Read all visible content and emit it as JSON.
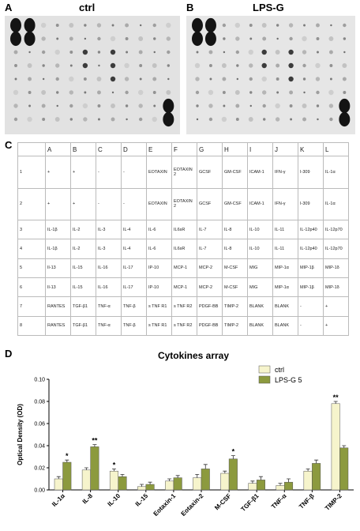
{
  "panels": {
    "a": {
      "label": "A",
      "title": "ctrl"
    },
    "b": {
      "label": "B",
      "title": "LPS-G"
    },
    "c": {
      "label": "C"
    },
    "d": {
      "label": "D"
    }
  },
  "table": {
    "header": [
      "A",
      "B",
      "C",
      "D",
      "E",
      "F",
      "G",
      "H",
      "I",
      "J",
      "K",
      "L"
    ],
    "rows": [
      [
        "1",
        "+",
        "+",
        "-",
        "-",
        "EOTAXIN",
        "EOTAXIN 2",
        "GCSF",
        "GM-CSF",
        "ICAM-1",
        "IFN-γ",
        "I-309",
        "IL-1α"
      ],
      [
        "2",
        "+",
        "+",
        "-",
        "-",
        "EOTAXIN",
        "EOTAXIN 2",
        "GCSF",
        "GM-CSF",
        "ICAM-1",
        "IFN-γ",
        "I-309",
        "IL-1α"
      ],
      [
        "3",
        "IL-1β",
        "IL-2",
        "IL-3",
        "IL-4",
        "IL-6",
        "IL6sR",
        "IL-7",
        "IL-8",
        "IL-10",
        "IL-11",
        "IL-12p40",
        "IL-12p70"
      ],
      [
        "4",
        "IL-1β",
        "IL-2",
        "IL-3",
        "IL-4",
        "IL-6",
        "IL6sR",
        "IL-7",
        "IL-8",
        "IL-10",
        "IL-11",
        "IL-12p40",
        "IL-12p70"
      ],
      [
        "5",
        "Il-13",
        "IL-15",
        "IL-16",
        "IL-17",
        "IP-10",
        "MCP-1",
        "MCP-2",
        "M-CSF",
        "MIG",
        "MIP-1α",
        "MIP-1β",
        "MIP-1δ"
      ],
      [
        "6",
        "Il-13",
        "IL-15",
        "IL-16",
        "IL-17",
        "IP-10",
        "MCP-1",
        "MCP-2",
        "M-CSF",
        "MIG",
        "MIP-1α",
        "MIP-1β",
        "MIP-1δ"
      ],
      [
        "7",
        "RANTES",
        "TGF-β1",
        "TNF-α",
        "TNF-β",
        "s TNF R1",
        "s TNF R2",
        "PDGF-BB",
        "TIMP-2",
        "BLANK",
        "BLANK",
        "-",
        "+"
      ],
      [
        "8",
        "RANTES",
        "TGF-β1",
        "TNF-α",
        "TNF-β",
        "s TNF R1",
        "s TNF R2",
        "PDGF-BB",
        "TIMP-2",
        "BLANK",
        "BLANK",
        "-",
        "+"
      ]
    ]
  },
  "chart_data": {
    "type": "bar",
    "title": "Cytokines array",
    "y_label": "Optical Density (OD)",
    "categories": [
      "IL-1α",
      "IL-8",
      "IL-10",
      "IL-15",
      "Eotaxin-1",
      "Eotaxin-2",
      "M-CSF",
      "TGF-β1",
      "TNF-α",
      "TNF-β",
      "TIMP-2"
    ],
    "series": [
      {
        "name": "ctrl",
        "color": "#f6f4cc",
        "values": [
          0.01,
          0.018,
          0.017,
          0.003,
          0.008,
          0.011,
          0.015,
          0.006,
          0.004,
          0.017,
          0.078
        ],
        "errors": [
          0.002,
          0.002,
          0.002,
          0.002,
          0.002,
          0.003,
          0.002,
          0.002,
          0.002,
          0.002,
          0.002
        ],
        "significance": [
          null,
          null,
          "*",
          null,
          null,
          null,
          null,
          null,
          null,
          null,
          "**"
        ]
      },
      {
        "name": "LPS-G 5",
        "color": "#8c9a3e",
        "values": [
          0.025,
          0.039,
          0.012,
          0.005,
          0.011,
          0.019,
          0.028,
          0.009,
          0.007,
          0.024,
          0.038
        ],
        "errors": [
          0.002,
          0.002,
          0.002,
          0.002,
          0.002,
          0.004,
          0.003,
          0.003,
          0.003,
          0.003,
          0.002
        ],
        "significance": [
          "*",
          "**",
          null,
          null,
          null,
          null,
          "*",
          null,
          null,
          null,
          null
        ]
      }
    ],
    "ylim": [
      0,
      0.1
    ],
    "yticks": [
      {
        "value": 0,
        "label": "0.00"
      },
      {
        "value": 0.02,
        "label": "0.02"
      },
      {
        "value": 0.04,
        "label": "0.04"
      },
      {
        "value": 0.06,
        "label": "0.06"
      },
      {
        "value": 0.08,
        "label": "0.08"
      },
      {
        "value": 0.1,
        "label": "0.10"
      }
    ],
    "legend": "top-right"
  }
}
